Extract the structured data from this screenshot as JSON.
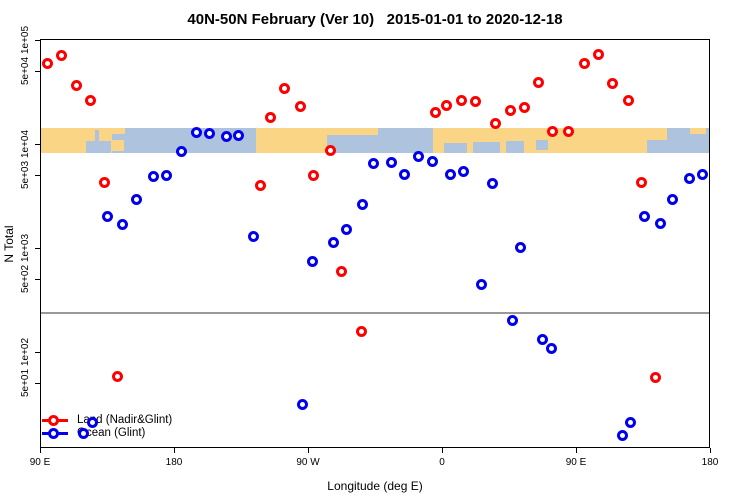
{
  "title": "40N-50N February (Ver 10)   2015-01-01 to 2020-12-18",
  "axes": {
    "x": {
      "label": "Longitude (deg E)",
      "tick_labels": [
        "90 E",
        "180",
        "90 W",
        "0",
        "90 E",
        "180"
      ],
      "tick_deg": [
        0,
        90,
        180,
        270,
        360,
        450
      ]
    },
    "y": {
      "label": "N Total",
      "scale": "log",
      "tick_labels": [
        "1e+05",
        "5e+04",
        "1e+04",
        "5e+03",
        "1e+03",
        "5e+02",
        "1e+02",
        "5e+01"
      ],
      "tick_values": [
        100000,
        50000,
        10000,
        5000,
        1000,
        500,
        100,
        50
      ]
    }
  },
  "legend": {
    "items": [
      {
        "label": "Land (Nadir&Glint)",
        "color": "#FF0000"
      },
      {
        "label": "Ocean (Glint)",
        "color": "#0000EE"
      }
    ]
  },
  "chart_data": {
    "type": "scatter",
    "title": "40N-50N February (Ver 10)   2015-01-01 to 2020-12-18",
    "xlabel": "Longitude (deg E)",
    "ylabel": "N Total",
    "x_unit": "degrees east of 90E, axis wraps 450 degrees total",
    "xlim_deg": [
      0,
      450
    ],
    "ylim": [
      11,
      100000
    ],
    "y_scale": "log",
    "grid": false,
    "legend_position": "bottom-left inside plot",
    "reference_line_n": 237,
    "reference_line_color": "#999999",
    "map_band": {
      "comment": "land/ocean strip for 40N-50N drawn across plot at N ~ 1e4",
      "n_top": 14200,
      "n_bottom": 8190,
      "land_color": "#FBD586",
      "ocean_color": "#AEC4DE",
      "segments": [
        {
          "f0": 0.0,
          "f1": 0.1075,
          "surface": "land"
        },
        {
          "f0": 0.1075,
          "f1": 0.3224,
          "surface": "ocean"
        },
        {
          "f0": 0.3224,
          "f1": 0.4284,
          "surface": "land"
        },
        {
          "f0": 0.4284,
          "f1": 0.5866,
          "surface": "ocean"
        },
        {
          "f0": 0.5866,
          "f1": 0.906,
          "surface": "land"
        },
        {
          "f0": 0.906,
          "f1": 1.0,
          "surface": "ocean"
        }
      ],
      "patches": [
        {
          "f0": 0.0687,
          "f1": 0.106,
          "v0": 0.52,
          "v1": 1.0,
          "surface": "ocean"
        },
        {
          "f0": 0.0821,
          "f1": 0.0881,
          "v0": 0.08,
          "v1": 0.52,
          "surface": "ocean"
        },
        {
          "f0": 0.1075,
          "f1": 0.1254,
          "v0": 0.48,
          "v1": 0.92,
          "surface": "land"
        },
        {
          "f0": 0.091,
          "f1": 0.1269,
          "v0": 0.0,
          "v1": 0.24,
          "surface": "land"
        },
        {
          "f0": 0.4284,
          "f1": 0.5045,
          "v0": 0.0,
          "v1": 0.28,
          "surface": "land"
        },
        {
          "f0": 0.603,
          "f1": 0.6373,
          "v0": 0.6,
          "v1": 1.0,
          "surface": "ocean"
        },
        {
          "f0": 0.6463,
          "f1": 0.6866,
          "v0": 0.56,
          "v1": 1.0,
          "surface": "ocean"
        },
        {
          "f0": 0.6955,
          "f1": 0.7224,
          "v0": 0.52,
          "v1": 1.0,
          "surface": "ocean"
        },
        {
          "f0": 0.7403,
          "f1": 0.7582,
          "v0": 0.48,
          "v1": 0.88,
          "surface": "ocean"
        },
        {
          "f0": 0.906,
          "f1": 0.9358,
          "v0": 0.0,
          "v1": 0.48,
          "surface": "land"
        },
        {
          "f0": 0.9701,
          "f1": 0.994,
          "v0": 0.0,
          "v1": 0.24,
          "surface": "land"
        }
      ]
    },
    "series": [
      {
        "name": "Land (Nadir&Glint)",
        "color": "#FF0000",
        "points": [
          [
            4.7,
            60100
          ],
          [
            14.1,
            71700
          ],
          [
            24.2,
            36900
          ],
          [
            33.6,
            26500
          ],
          [
            43.0,
            4310
          ],
          [
            51.7,
            58.8
          ],
          [
            147.8,
            4030
          ],
          [
            154.5,
            18200
          ],
          [
            163.9,
            34500
          ],
          [
            174.6,
            23200
          ],
          [
            183.4,
            5030
          ],
          [
            195.4,
            8760
          ],
          [
            202.8,
            601
          ],
          [
            215.6,
            159
          ],
          [
            265.3,
            19900
          ],
          [
            273.3,
            23700
          ],
          [
            282.8,
            26500
          ],
          [
            292.8,
            25900
          ],
          [
            305.6,
            15900
          ],
          [
            315.7,
            21200
          ],
          [
            325.1,
            22700
          ],
          [
            335.1,
            39500
          ],
          [
            344.5,
            13300
          ],
          [
            354.6,
            13300
          ],
          [
            365.4,
            60100
          ],
          [
            374.8,
            73300
          ],
          [
            384.8,
            38600
          ],
          [
            394.9,
            26500
          ],
          [
            403.7,
            4310
          ],
          [
            413.1,
            57.5
          ]
        ]
      },
      {
        "name": "Ocean (Glint)",
        "color": "#0000EE",
        "points": [
          [
            28.9,
            16.6
          ],
          [
            34.9,
            21.2
          ],
          [
            45.0,
            1990
          ],
          [
            55.1,
            1700
          ],
          [
            64.5,
            2960
          ],
          [
            75.9,
            4920
          ],
          [
            84.6,
            5030
          ],
          [
            94.7,
            8560
          ],
          [
            105.4,
            13000
          ],
          [
            113.5,
            12500
          ],
          [
            124.9,
            11700
          ],
          [
            133.0,
            12200
          ],
          [
            143.1,
            1280
          ],
          [
            176.0,
            31.6
          ],
          [
            182.7,
            750
          ],
          [
            196.8,
            1120
          ],
          [
            205.5,
            1520
          ],
          [
            216.3,
            2650
          ],
          [
            223.7,
            6565
          ],
          [
            235.8,
            6710
          ],
          [
            244.5,
            5150
          ],
          [
            254.5,
            7670
          ],
          [
            263.3,
            6860
          ],
          [
            276.0,
            5150
          ],
          [
            284.1,
            5500
          ],
          [
            296.2,
            451
          ],
          [
            303.6,
            4220
          ],
          [
            317.0,
            203
          ],
          [
            323.0,
            1020
          ],
          [
            337.8,
            133
          ],
          [
            343.8,
            107
          ],
          [
            390.9,
            15.6
          ],
          [
            396.3,
            21.2
          ],
          [
            405.7,
            1990
          ],
          [
            416.4,
            1740
          ],
          [
            425.1,
            2960
          ],
          [
            436.5,
            4710
          ],
          [
            445.2,
            5150
          ]
        ]
      }
    ]
  }
}
